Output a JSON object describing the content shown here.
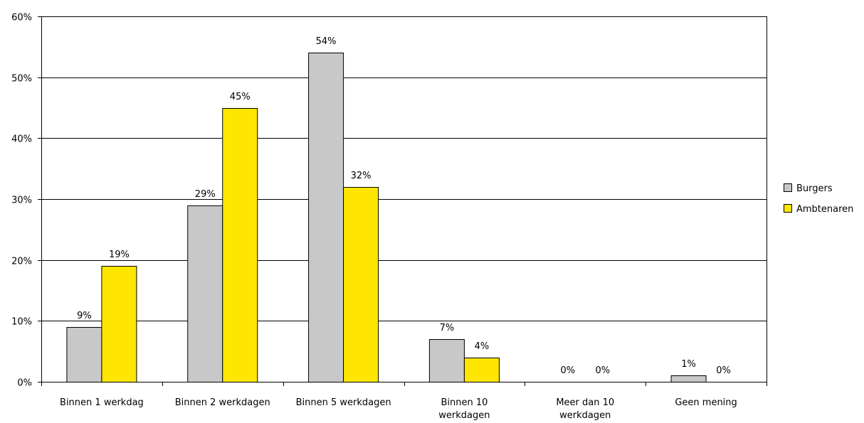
{
  "chart_data": {
    "type": "bar",
    "categories": [
      [
        "Binnen 1 werkdag"
      ],
      [
        "Binnen 2 werkdagen"
      ],
      [
        "Binnen 5 werkdagen"
      ],
      [
        "Binnen 10",
        "werkdagen"
      ],
      [
        "Meer dan 10",
        "werkdagen"
      ],
      [
        "Geen mening"
      ]
    ],
    "series": [
      {
        "name": "Burgers",
        "values": [
          9,
          29,
          54,
          7,
          0,
          1
        ],
        "labels": [
          "9%",
          "29%",
          "54%",
          "7%",
          "0%",
          "1%"
        ],
        "color": "#C8C8C8"
      },
      {
        "name": "Ambtenaren",
        "values": [
          19,
          45,
          32,
          4,
          0,
          0
        ],
        "labels": [
          "19%",
          "45%",
          "32%",
          "4%",
          "0%",
          "0%"
        ],
        "color": "#FFE600"
      }
    ],
    "ylim": [
      0,
      60
    ],
    "yticks": [
      0,
      10,
      20,
      30,
      40,
      50,
      60
    ],
    "ytick_labels": [
      "0%",
      "10%",
      "20%",
      "30%",
      "40%",
      "50%",
      "60%"
    ],
    "grid": true,
    "legend": "right",
    "title": "",
    "xlabel": "",
    "ylabel": ""
  }
}
